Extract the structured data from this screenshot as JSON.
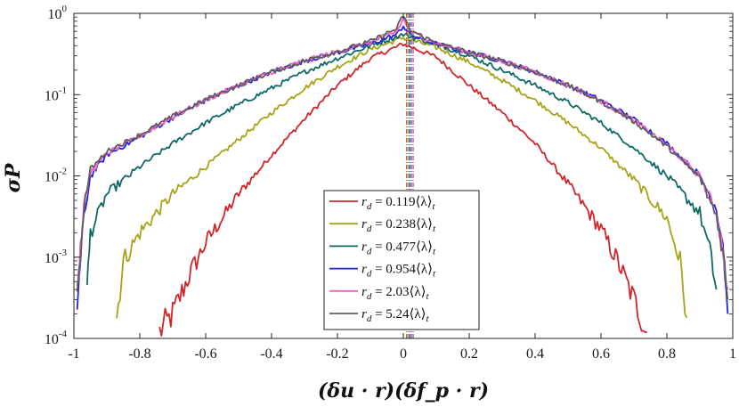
{
  "chart_data": {
    "type": "line",
    "title": "",
    "xlabel": "(δu · r)(δf_p · r)",
    "ylabel": "σP",
    "xlim": [
      -1,
      1
    ],
    "ylim": [
      0.0001,
      1
    ],
    "yscale": "log",
    "grid": false,
    "legend_position": "lower-center",
    "x_ticks": [
      -1,
      -0.8,
      -0.6,
      -0.4,
      -0.2,
      0,
      0.2,
      0.4,
      0.6,
      0.8,
      1
    ],
    "x_tick_labels": [
      "-1",
      "-0.8",
      "-0.6",
      "-0.4",
      "-0.2",
      "0",
      "0.2",
      "0.4",
      "0.6",
      "0.8",
      "1"
    ],
    "y_ticks": [
      0.0001,
      0.001,
      0.01,
      0.1,
      1
    ],
    "y_tick_labels": [
      {
        "base": "10",
        "exp": "-4"
      },
      {
        "base": "10",
        "exp": "-3"
      },
      {
        "base": "10",
        "exp": "-2"
      },
      {
        "base": "10",
        "exp": "-1"
      },
      {
        "base": "10",
        "exp": "0"
      }
    ],
    "series": [
      {
        "name": "r_d = 0.119⟨λ⟩_t",
        "legend": {
          "var": "r",
          "sub": "d",
          "value": " = 0.119⟨λ⟩",
          "tsub": "t"
        },
        "color": "#d0262a",
        "mean": 0.01,
        "x": [
          -0.74,
          -0.7,
          -0.65,
          -0.6,
          -0.5,
          -0.4,
          -0.3,
          -0.2,
          -0.1,
          0,
          0.1,
          0.2,
          0.3,
          0.4,
          0.5,
          0.6,
          0.65,
          0.7,
          0.74
        ],
        "y": [
          0.00012,
          0.0002,
          0.0006,
          0.0015,
          0.006,
          0.018,
          0.05,
          0.13,
          0.28,
          0.42,
          0.29,
          0.13,
          0.06,
          0.025,
          0.008,
          0.0022,
          0.0009,
          0.0003,
          0.00012
        ]
      },
      {
        "name": "r_d = 0.238⟨λ⟩_t",
        "legend": {
          "var": "r",
          "sub": "d",
          "value": " = 0.238⟨λ⟩",
          "tsub": "t"
        },
        "color": "#a6a418",
        "mean": 0.014,
        "x": [
          -0.87,
          -0.85,
          -0.8,
          -0.7,
          -0.6,
          -0.5,
          -0.4,
          -0.3,
          -0.2,
          -0.1,
          0,
          0.1,
          0.2,
          0.3,
          0.4,
          0.5,
          0.6,
          0.7,
          0.8,
          0.84,
          0.86
        ],
        "y": [
          0.00018,
          0.0009,
          0.002,
          0.006,
          0.013,
          0.028,
          0.06,
          0.12,
          0.22,
          0.36,
          0.5,
          0.38,
          0.25,
          0.15,
          0.085,
          0.045,
          0.022,
          0.009,
          0.003,
          0.0009,
          0.00018
        ]
      },
      {
        "name": "r_d = 0.477⟨λ⟩_t",
        "legend": {
          "var": "r",
          "sub": "d",
          "value": " = 0.477⟨λ⟩",
          "tsub": "t"
        },
        "color": "#0f6a66",
        "mean": 0.018,
        "x": [
          -0.96,
          -0.95,
          -0.9,
          -0.8,
          -0.7,
          -0.6,
          -0.5,
          -0.4,
          -0.3,
          -0.2,
          -0.1,
          0,
          0.1,
          0.2,
          0.3,
          0.4,
          0.5,
          0.6,
          0.7,
          0.8,
          0.9,
          0.93,
          0.95
        ],
        "y": [
          0.0004,
          0.002,
          0.006,
          0.013,
          0.025,
          0.045,
          0.075,
          0.12,
          0.19,
          0.28,
          0.4,
          0.55,
          0.42,
          0.3,
          0.2,
          0.13,
          0.08,
          0.045,
          0.022,
          0.01,
          0.0035,
          0.0012,
          0.0004
        ]
      },
      {
        "name": "r_d = 0.954⟨λ⟩_t",
        "legend": {
          "var": "r",
          "sub": "d",
          "value": " = 0.954⟨λ⟩",
          "tsub": "t"
        },
        "color": "#2323e0",
        "mean": 0.022,
        "x": [
          -0.99,
          -0.97,
          -0.95,
          -0.9,
          -0.8,
          -0.7,
          -0.6,
          -0.5,
          -0.4,
          -0.3,
          -0.2,
          -0.1,
          -0.02,
          0,
          0.02,
          0.1,
          0.2,
          0.3,
          0.4,
          0.5,
          0.6,
          0.7,
          0.8,
          0.9,
          0.95,
          0.97,
          0.985
        ],
        "y": [
          0.00025,
          0.003,
          0.01,
          0.018,
          0.03,
          0.052,
          0.085,
          0.13,
          0.19,
          0.26,
          0.33,
          0.42,
          0.55,
          0.7,
          0.55,
          0.42,
          0.33,
          0.26,
          0.19,
          0.13,
          0.085,
          0.05,
          0.025,
          0.01,
          0.004,
          0.0015,
          0.0002
        ]
      },
      {
        "name": "r_d = 2.03⟨λ⟩_t",
        "legend": {
          "var": "r",
          "sub": "d",
          "value": " = 2.03⟨λ⟩",
          "tsub": "t"
        },
        "color": "#f060c0",
        "mean": 0.026,
        "x": [
          -0.99,
          -0.97,
          -0.95,
          -0.9,
          -0.8,
          -0.7,
          -0.6,
          -0.5,
          -0.4,
          -0.3,
          -0.2,
          -0.1,
          -0.02,
          0,
          0.02,
          0.1,
          0.2,
          0.3,
          0.4,
          0.5,
          0.6,
          0.7,
          0.8,
          0.9,
          0.95,
          0.97,
          0.985
        ],
        "y": [
          0.0004,
          0.004,
          0.011,
          0.019,
          0.031,
          0.053,
          0.086,
          0.13,
          0.19,
          0.26,
          0.34,
          0.44,
          0.6,
          0.85,
          0.6,
          0.43,
          0.33,
          0.26,
          0.19,
          0.13,
          0.083,
          0.048,
          0.024,
          0.01,
          0.0035,
          0.0013,
          0.0004
        ]
      },
      {
        "name": "r_d = 5.24⟨λ⟩_t",
        "legend": {
          "var": "r",
          "sub": "d",
          "value": " = 5.24⟨λ⟩",
          "tsub": "t"
        },
        "color": "#5e5e5e",
        "mean": 0.03,
        "x": [
          -0.99,
          -0.97,
          -0.95,
          -0.9,
          -0.8,
          -0.7,
          -0.6,
          -0.5,
          -0.4,
          -0.3,
          -0.2,
          -0.1,
          -0.02,
          0,
          0.02,
          0.1,
          0.2,
          0.3,
          0.4,
          0.5,
          0.6,
          0.7,
          0.8,
          0.9,
          0.95,
          0.97,
          0.985
        ],
        "y": [
          0.0003,
          0.004,
          0.012,
          0.02,
          0.032,
          0.054,
          0.087,
          0.13,
          0.19,
          0.26,
          0.34,
          0.45,
          0.65,
          0.95,
          0.62,
          0.43,
          0.33,
          0.26,
          0.19,
          0.13,
          0.082,
          0.047,
          0.023,
          0.0095,
          0.0033,
          0.0012,
          0.0003
        ]
      }
    ]
  }
}
